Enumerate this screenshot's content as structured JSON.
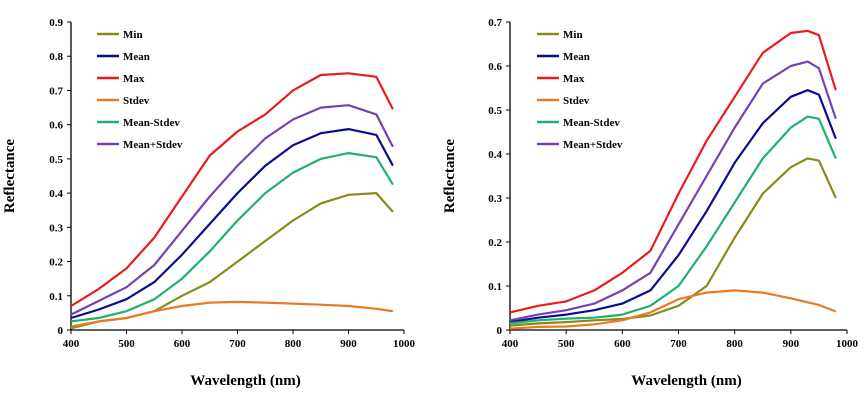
{
  "chart_data": [
    {
      "type": "line",
      "xlabel": "Wavelength (nm)",
      "ylabel": "Reflectance",
      "xlim": [
        400,
        1000
      ],
      "ylim": [
        0,
        0.9
      ],
      "xticks": [
        "400",
        "500",
        "600",
        "700",
        "800",
        "900",
        "1000"
      ],
      "yticks": [
        "0",
        "0.1",
        "0.2",
        "0.3",
        "0.4",
        "0.5",
        "0.6",
        "0.7",
        "0.8",
        "0.9"
      ],
      "grid": false,
      "legend_position": "top-left",
      "x": [
        400,
        450,
        500,
        550,
        600,
        650,
        700,
        750,
        800,
        850,
        900,
        950,
        980
      ],
      "series": [
        {
          "name": "Min",
          "color": "#8a8a1c",
          "values": [
            0.005,
            0.025,
            0.035,
            0.055,
            0.1,
            0.14,
            0.2,
            0.26,
            0.32,
            0.37,
            0.395,
            0.4,
            0.345
          ]
        },
        {
          "name": "Mean",
          "color": "#0c0c90",
          "values": [
            0.035,
            0.06,
            0.09,
            0.14,
            0.22,
            0.31,
            0.4,
            0.48,
            0.54,
            0.575,
            0.587,
            0.57,
            0.48
          ]
        },
        {
          "name": "Max",
          "color": "#e81c1c",
          "values": [
            0.07,
            0.12,
            0.18,
            0.27,
            0.39,
            0.51,
            0.58,
            0.63,
            0.7,
            0.745,
            0.75,
            0.74,
            0.645
          ]
        },
        {
          "name": "Stdev",
          "color": "#e87a22",
          "values": [
            0.01,
            0.025,
            0.035,
            0.055,
            0.07,
            0.08,
            0.082,
            0.08,
            0.077,
            0.074,
            0.07,
            0.062,
            0.055
          ]
        },
        {
          "name": "Mean-Stdev",
          "color": "#22b06e",
          "values": [
            0.025,
            0.035,
            0.055,
            0.09,
            0.15,
            0.23,
            0.32,
            0.4,
            0.46,
            0.5,
            0.517,
            0.505,
            0.425
          ]
        },
        {
          "name": "Mean+Stdev",
          "color": "#7442b2",
          "values": [
            0.045,
            0.085,
            0.125,
            0.19,
            0.29,
            0.39,
            0.48,
            0.56,
            0.615,
            0.65,
            0.657,
            0.63,
            0.535
          ]
        }
      ]
    },
    {
      "type": "line",
      "xlabel": "Wavelength (nm)",
      "ylabel": "Reflectance",
      "xlim": [
        400,
        1000
      ],
      "ylim": [
        0,
        0.7
      ],
      "xticks": [
        "400",
        "500",
        "600",
        "700",
        "800",
        "900",
        "1000"
      ],
      "yticks": [
        "0",
        "0.1",
        "0.2",
        "0.3",
        "0.4",
        "0.5",
        "0.6",
        "0.7"
      ],
      "grid": false,
      "legend_position": "top-left",
      "x": [
        400,
        450,
        500,
        550,
        600,
        650,
        700,
        750,
        800,
        850,
        900,
        930,
        950,
        980
      ],
      "series": [
        {
          "name": "Min",
          "color": "#8a8a1c",
          "values": [
            0.01,
            0.015,
            0.018,
            0.022,
            0.025,
            0.033,
            0.055,
            0.1,
            0.21,
            0.31,
            0.37,
            0.39,
            0.385,
            0.3
          ]
        },
        {
          "name": "Mean",
          "color": "#0c0c90",
          "values": [
            0.018,
            0.028,
            0.035,
            0.045,
            0.06,
            0.09,
            0.17,
            0.27,
            0.38,
            0.47,
            0.53,
            0.545,
            0.535,
            0.435
          ]
        },
        {
          "name": "Max",
          "color": "#e81c1c",
          "values": [
            0.04,
            0.055,
            0.065,
            0.09,
            0.13,
            0.18,
            0.31,
            0.43,
            0.53,
            0.63,
            0.675,
            0.68,
            0.67,
            0.545
          ]
        },
        {
          "name": "Stdev",
          "color": "#e87a22",
          "values": [
            0.003,
            0.007,
            0.008,
            0.013,
            0.022,
            0.04,
            0.07,
            0.085,
            0.09,
            0.085,
            0.072,
            0.063,
            0.057,
            0.042
          ]
        },
        {
          "name": "Mean-Stdev",
          "color": "#22b06e",
          "values": [
            0.015,
            0.022,
            0.026,
            0.028,
            0.035,
            0.055,
            0.1,
            0.19,
            0.29,
            0.39,
            0.46,
            0.485,
            0.48,
            0.39
          ]
        },
        {
          "name": "Mean+Stdev",
          "color": "#7442b2",
          "values": [
            0.022,
            0.035,
            0.045,
            0.06,
            0.09,
            0.13,
            0.24,
            0.35,
            0.46,
            0.56,
            0.6,
            0.61,
            0.595,
            0.48
          ]
        }
      ]
    }
  ]
}
